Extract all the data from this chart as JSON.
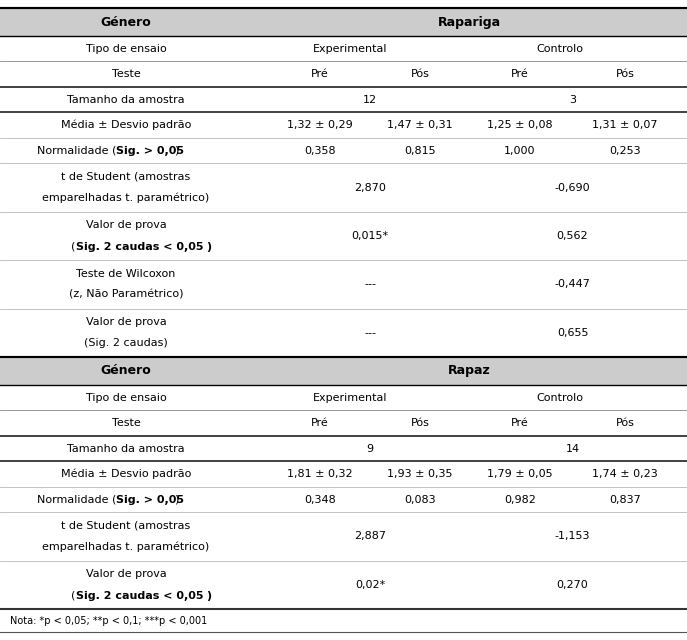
{
  "bg_header": "#cccccc",
  "bg_white": "#ffffff",
  "font_size": 8.0,
  "header_font_size": 9.0,
  "note": "Nota: *p < 0,05; **p < 0,1; ***p < 0,001",
  "col_dividers": [
    0.365
  ],
  "sections": [
    {
      "genre": "Género",
      "genre_val": "Rapariga",
      "sample": "12",
      "sample_ctrl": "3",
      "media": [
        "1,32 ± 0,29",
        "1,47 ± 0,31",
        "1,25 ± 0,08",
        "1,31 ± 0,07"
      ],
      "norm": [
        "0,358",
        "0,815",
        "1,000",
        "0,253"
      ],
      "tstudent": [
        "2,870",
        "-0,690"
      ],
      "valor_t": [
        "0,015*",
        "0,562"
      ],
      "wilcoxon": [
        "---",
        "-0,447"
      ],
      "valor_w": [
        "---",
        "0,655"
      ],
      "has_wilcoxon": true
    },
    {
      "genre": "Género",
      "genre_val": "Rapaz",
      "sample": "9",
      "sample_ctrl": "14",
      "media": [
        "1,81 ± 0,32",
        "1,93 ± 0,35",
        "1,79 ± 0,05",
        "1,74 ± 0,23"
      ],
      "norm": [
        "0,348",
        "0,083",
        "0,982",
        "0,837"
      ],
      "tstudent": [
        "2,887",
        "-1,153"
      ],
      "valor_t": [
        "0,02*",
        "0,270"
      ],
      "has_wilcoxon": false
    }
  ]
}
